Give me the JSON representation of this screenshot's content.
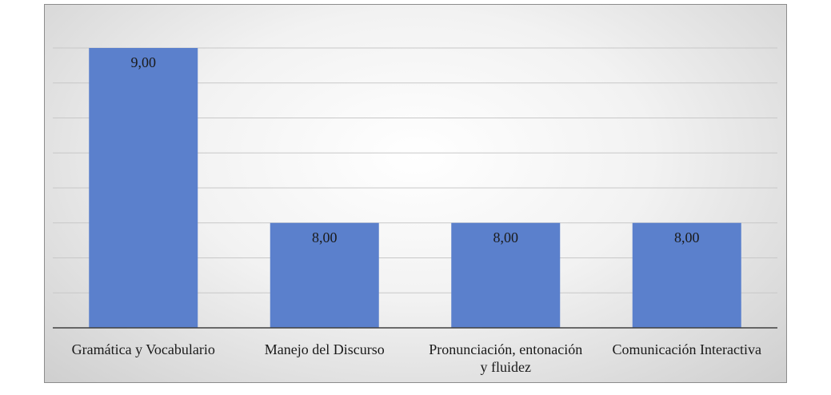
{
  "chart_data": {
    "type": "bar",
    "categories": [
      "Gramática y Vocabulario",
      "Manejo del Discurso",
      "Pronunciación, entonación y fluidez",
      "Comunicación Interactiva"
    ],
    "values": [
      9,
      8,
      8,
      8
    ],
    "value_labels": [
      "9,00",
      "8,00",
      "8,00",
      "8,00"
    ],
    "color": "#5b80cc",
    "ylim": [
      7.4,
      9
    ],
    "yticks": [
      7.4,
      7.6,
      7.8,
      8,
      8.2,
      8.4,
      8.6,
      8.8,
      9
    ],
    "grid": true
  }
}
